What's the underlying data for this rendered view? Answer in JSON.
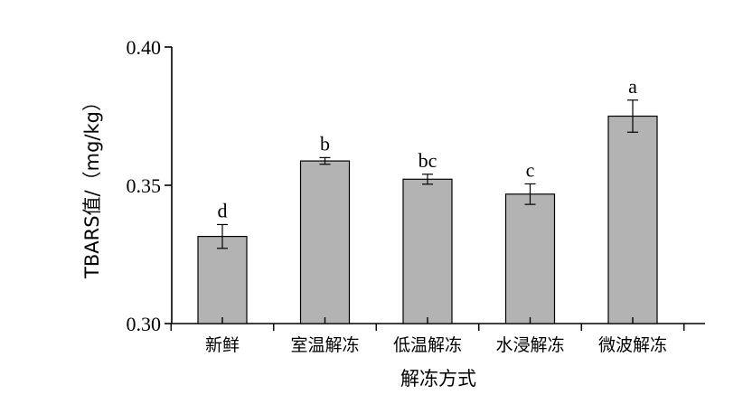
{
  "chart_data": {
    "type": "bar",
    "xlabel": "解冻方式",
    "ylabel": "TBARS值/（mg/kg）",
    "ylim": [
      0.3,
      0.4
    ],
    "yticks": [
      "0.30",
      "0.35",
      "0.40"
    ],
    "ytick_values": [
      0.3,
      0.35,
      0.4
    ],
    "categories": [
      "新鲜",
      "室温解冻",
      "低温解冻",
      "水浸解冻",
      "微波解冻"
    ],
    "values": [
      0.3315,
      0.3588,
      0.3522,
      0.3468,
      0.375
    ],
    "errors": [
      0.0043,
      0.0012,
      0.0018,
      0.0037,
      0.0058
    ],
    "significance": [
      "d",
      "b",
      "bc",
      "c",
      "a"
    ],
    "bar_color": "#b3b3b3",
    "grid": false
  }
}
